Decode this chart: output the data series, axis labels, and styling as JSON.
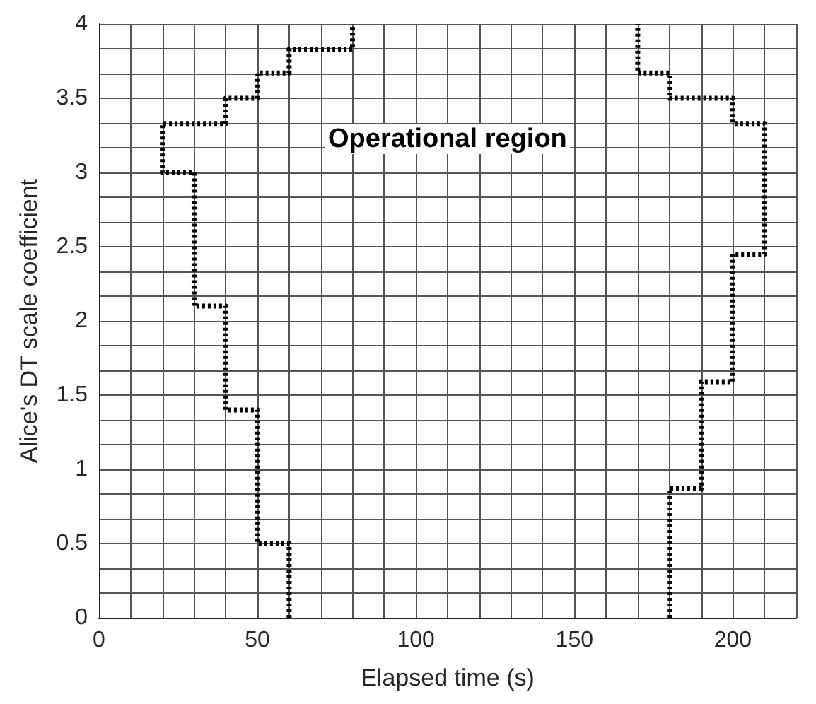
{
  "chart_data": {
    "type": "step",
    "xlabel": "Elapsed time (s)",
    "ylabel": "Alice's DT scale coefficient",
    "annotations": [
      "Operational region"
    ],
    "series": [
      {
        "color": "#000000",
        "x": [
          60,
          50,
          40,
          30,
          20,
          40,
          50,
          60,
          80,
          80
        ],
        "values": [
          0,
          0.5,
          1.4,
          2.1,
          3,
          3.33,
          3.5,
          3.67,
          3.83,
          4
        ]
      },
      {
        "color": "#000000",
        "x": [
          180,
          190,
          200,
          210,
          200,
          180,
          170,
          170
        ],
        "values": [
          0,
          0.87,
          1.59,
          2.45,
          3.33,
          3.5,
          3.67,
          4
        ]
      }
    ],
    "xlim": [
      0,
      220
    ],
    "xticks": [
      0,
      {
        "value": 10,
        "label": null
      },
      {
        "value": 20,
        "label": null
      },
      {
        "value": 30,
        "label": null
      },
      {
        "value": 40,
        "label": null
      },
      50,
      {
        "value": 60,
        "label": null
      },
      {
        "value": 70,
        "label": null
      },
      {
        "value": 80,
        "label": null
      },
      {
        "value": 90,
        "label": null
      },
      100,
      {
        "value": 110,
        "label": null
      },
      {
        "value": 120,
        "label": null
      },
      {
        "value": 130,
        "label": null
      },
      {
        "value": 140,
        "label": null
      },
      150,
      {
        "value": 160,
        "label": null
      },
      {
        "value": 170,
        "label": null
      },
      {
        "value": 180,
        "label": null
      },
      {
        "value": 190,
        "label": null
      },
      200,
      {
        "value": 210,
        "label": null
      },
      {
        "value": 220,
        "label": null
      }
    ],
    "ylim": [
      0,
      4
    ],
    "yticks": [
      0,
      {
        "value": 0.167,
        "label": null
      },
      {
        "value": 0.333,
        "label": null
      },
      0.5,
      {
        "value": 0.667,
        "label": null
      },
      {
        "value": 0.833,
        "label": null
      },
      1,
      {
        "value": 1.167,
        "label": null
      },
      {
        "value": 1.333,
        "label": null
      },
      1.5,
      {
        "value": 1.667,
        "label": null
      },
      {
        "value": 1.833,
        "label": null
      },
      2,
      {
        "value": 2.167,
        "label": null
      },
      {
        "value": 2.333,
        "label": null
      },
      2.5,
      {
        "value": 2.667,
        "label": null
      },
      {
        "value": 2.833,
        "label": null
      },
      3,
      {
        "value": 3.167,
        "label": null
      },
      {
        "value": 3.333,
        "label": null
      },
      3.5,
      {
        "value": 3.667,
        "label": null
      },
      {
        "value": 3.833,
        "label": null
      },
      4
    ],
    "grid": true,
    "marker": "none",
    "line_style": "dotted"
  }
}
